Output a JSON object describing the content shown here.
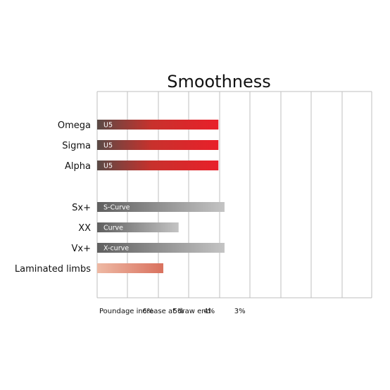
{
  "chart_data": {
    "type": "bar",
    "orientation": "horizontal",
    "title": "Smoothness",
    "xlabel": "Poundage increase at draw end",
    "x_tick_labels": [
      {
        "value": 6,
        "label": "6%"
      },
      {
        "value": 5,
        "label": "5%"
      },
      {
        "value": 4,
        "label": "4%"
      },
      {
        "value": 3,
        "label": "3%"
      }
    ],
    "x_reversed": true,
    "grid": true,
    "bars": [
      {
        "category": "Omega",
        "bar_label": "U5",
        "value": 3.7,
        "style": "red",
        "group": 1
      },
      {
        "category": "Sigma",
        "bar_label": "U5",
        "value": 3.7,
        "style": "red",
        "group": 1
      },
      {
        "category": "Alpha",
        "bar_label": "U5",
        "value": 3.7,
        "style": "red",
        "group": 1
      },
      {
        "category": "Sx+",
        "bar_label": "S-Curve",
        "value": 3.5,
        "style": "gray",
        "group": 2
      },
      {
        "category": "XX",
        "bar_label": "Curve",
        "value": 5.0,
        "style": "gray",
        "group": 2
      },
      {
        "category": "Vx+",
        "bar_label": "X-curve",
        "value": 3.5,
        "style": "gray",
        "group": 2
      },
      {
        "category": "Laminated limbs",
        "bar_label": "",
        "value": 5.5,
        "style": "salmon",
        "group": 2
      }
    ],
    "colors": {
      "red_start": "#5a4a46",
      "red_end": "#e8202a",
      "gray_start": "#5f5f5f",
      "gray_end": "#c4c4c4",
      "salmon_start": "#eeb9a4",
      "salmon_end": "#d9715e",
      "grid": "#bfbfbf"
    }
  }
}
